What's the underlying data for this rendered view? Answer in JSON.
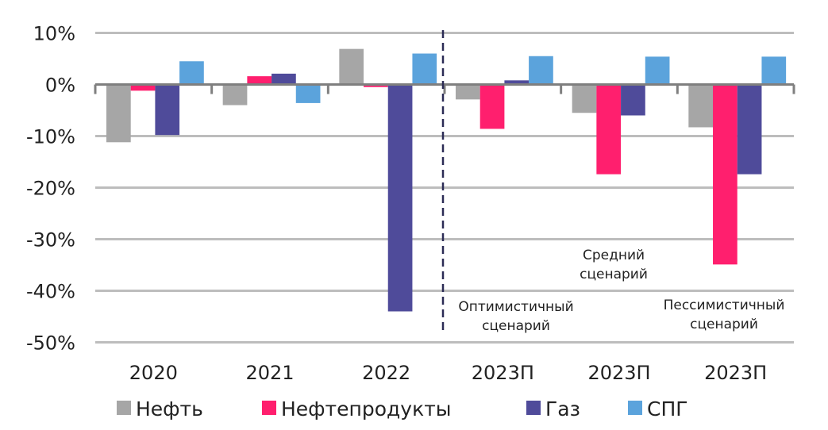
{
  "chart_data": {
    "type": "bar",
    "categories": [
      "2020",
      "2021",
      "2022",
      "2023П",
      "2023П",
      "2023П"
    ],
    "series": [
      {
        "name": "Нефть",
        "color": "#a6a6a6",
        "values": [
          -11.2,
          -4.0,
          6.9,
          -2.9,
          -5.5,
          -8.3
        ]
      },
      {
        "name": "Нефтепродукты",
        "color": "#ff1f6e",
        "values": [
          -1.2,
          1.6,
          -0.5,
          -8.6,
          -17.4,
          -34.9
        ]
      },
      {
        "name": "Газ",
        "color": "#4f4b9a",
        "values": [
          -9.8,
          2.1,
          -44.0,
          0.8,
          -6.0,
          -17.4
        ]
      },
      {
        "name": "СПГ",
        "color": "#5ba3dc",
        "values": [
          4.5,
          -3.6,
          6.0,
          5.5,
          5.4,
          5.4
        ]
      }
    ],
    "yticks": [
      "10%",
      "0%",
      "-10%",
      "-20%",
      "-30%",
      "-40%",
      "-50%"
    ],
    "ylim": [
      -50,
      10
    ],
    "grid": true,
    "legend": "bottom",
    "annotations": [
      {
        "lines": [
          "Оптимистичный",
          "сценарий"
        ],
        "category_index": 3
      },
      {
        "lines": [
          "Средний",
          "сценарий"
        ],
        "category_index": 4
      },
      {
        "lines": [
          "Пессимистичный",
          "сценарий"
        ],
        "category_index": 5
      }
    ],
    "forecast_divider": "dashed line between 2022 and 2023П"
  }
}
